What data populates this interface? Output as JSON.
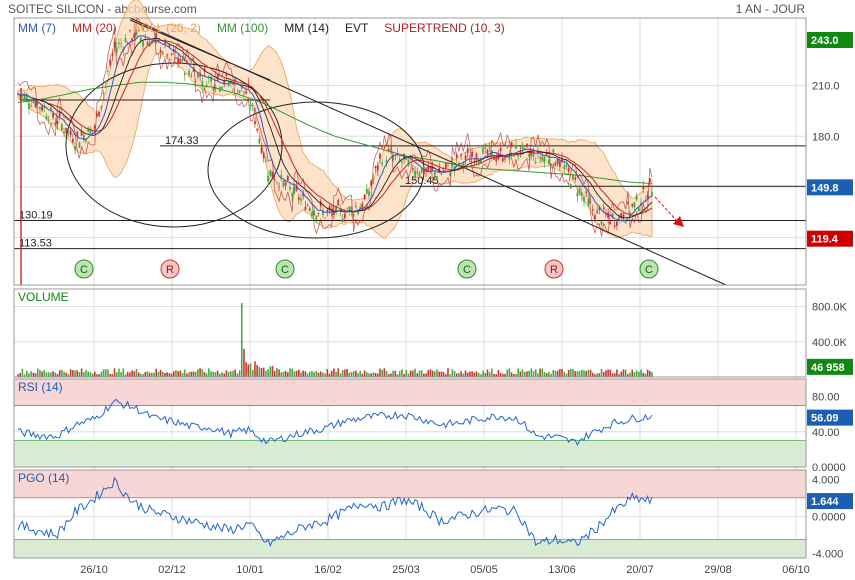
{
  "header": {
    "title": "SOITEC SILICON - abcbourse.com",
    "period": "1 AN - JOUR"
  },
  "colors": {
    "mm7": "#3355cc",
    "mm20": "#cc2222",
    "boll": "#f0a050",
    "mm100": "#339933",
    "mm14": "#222222",
    "evt": "#222222",
    "supertrend": "#aa2222",
    "price": "#222222",
    "up": "#44aa44",
    "down": "#cc3333",
    "green_label": "#118811",
    "red_label": "#cc0000",
    "blue_label": "#1a5fb4",
    "rsi_line": "#2266cc",
    "grid": "#dddddd"
  },
  "legend": [
    {
      "name": "mm7",
      "label": "MM (7)",
      "color": "#3355cc"
    },
    {
      "name": "mm20",
      "label": "MM (20)",
      "color": "#cc2222"
    },
    {
      "name": "boll",
      "label": "BOLL (20, 2)",
      "color": "#f0a050"
    },
    {
      "name": "mm100",
      "label": "MM (100)",
      "color": "#339933"
    },
    {
      "name": "mm14",
      "label": "MM (14)",
      "color": "#222222"
    },
    {
      "name": "evt",
      "label": "EVT",
      "color": "#222222"
    },
    {
      "name": "supertrend",
      "label": "SUPERTREND (10, 3)",
      "color": "#aa2222"
    }
  ],
  "chart_data": [
    {
      "type": "line",
      "panel": "price",
      "ylim": [
        92,
        250
      ],
      "yticks": [
        "210.0",
        "180.0",
        "150.0",
        "120.0"
      ],
      "yticks_values": [
        210,
        180,
        150,
        120
      ],
      "x_dates": [
        "26/10",
        "02/12",
        "10/01",
        "16/02",
        "25/03",
        "05/05",
        "13/06",
        "20/07",
        "29/08",
        "06/10"
      ],
      "markers": {
        "last_price": {
          "label": "149.8",
          "value": 149.8
        },
        "top_box": {
          "label": "243.0",
          "value": 243.0
        },
        "low_box": {
          "label": "119.4",
          "value": 119.4
        }
      },
      "horizontal_levels": [
        {
          "label": "174.33",
          "value": 174.33
        },
        {
          "label": "150.45",
          "value": 150.45
        },
        {
          "label": "130.19",
          "value": 130.19
        },
        {
          "label": "113.53",
          "value": 113.53
        }
      ],
      "signals": [
        {
          "label": "C",
          "kind": "buy"
        },
        {
          "label": "R",
          "kind": "sell"
        },
        {
          "label": "C",
          "kind": "buy"
        },
        {
          "label": "C",
          "kind": "buy"
        },
        {
          "label": "R",
          "kind": "sell"
        },
        {
          "label": "C",
          "kind": "buy"
        }
      ],
      "close_anchors": [
        205,
        200,
        190,
        178,
        185,
        232,
        240,
        236,
        228,
        218,
        214,
        212,
        205,
        160,
        150,
        140,
        134,
        135,
        140,
        170,
        165,
        160,
        158,
        165,
        170,
        168,
        172,
        168,
        168,
        152,
        135,
        130,
        138,
        150
      ],
      "mm100_anchors": [
        200,
        202,
        205,
        208,
        210,
        212,
        212,
        211,
        209,
        205,
        200,
        193,
        186,
        180,
        176,
        172,
        168,
        166,
        163,
        161,
        160,
        159,
        158,
        157,
        155,
        153,
        152
      ]
    },
    {
      "type": "bar",
      "panel": "volume",
      "title": "VOLUME",
      "ylim": [
        0,
        1000000
      ],
      "yticks": [
        "800.0K",
        "400.0K"
      ],
      "yticks_values": [
        800000,
        400000
      ],
      "last_value": {
        "label": "46 958",
        "value": 46958
      }
    },
    {
      "type": "line",
      "panel": "rsi",
      "title": "RSI (14)",
      "ylim": [
        0,
        100
      ],
      "yticks": [
        "80.00",
        "40.00",
        "0.0000"
      ],
      "yticks_values": [
        80,
        40,
        0
      ],
      "last_value": {
        "label": "56.09",
        "value": 56.09
      },
      "anchors": [
        40,
        36,
        35,
        48,
        55,
        74,
        68,
        56,
        52,
        46,
        45,
        38,
        42,
        28,
        34,
        40,
        44,
        52,
        56,
        58,
        60,
        55,
        48,
        50,
        55,
        58,
        55,
        35,
        34,
        28,
        40,
        50,
        55,
        58
      ]
    },
    {
      "type": "line",
      "panel": "pgo",
      "title": "PGO (14)",
      "ylim": [
        -4.5,
        5
      ],
      "yticks": [
        "4.000",
        "0.0000",
        "-4.000"
      ],
      "yticks_values": [
        4,
        0,
        -4
      ],
      "last_value": {
        "label": "1.644",
        "value": 1.644
      },
      "anchors": [
        -1.0,
        -1.5,
        -2.0,
        0.5,
        2.0,
        3.8,
        1.5,
        0.5,
        0.0,
        -0.5,
        -1.0,
        -1.5,
        -0.8,
        -3.0,
        -2.0,
        -1.0,
        -0.5,
        0.5,
        1.5,
        1.0,
        1.8,
        1.0,
        -0.5,
        0.0,
        0.5,
        0.8,
        0.5,
        -3.0,
        -2.5,
        -3.0,
        -1.5,
        0.5,
        2.0,
        1.6
      ]
    }
  ]
}
